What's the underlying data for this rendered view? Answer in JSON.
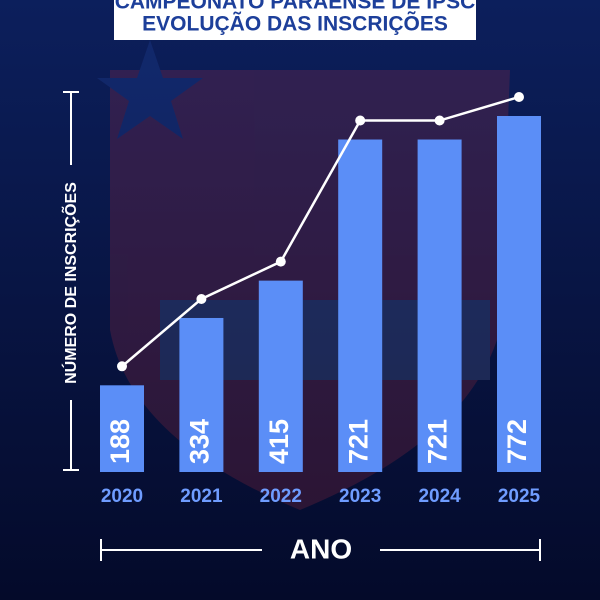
{
  "chart_data": {
    "type": "bar",
    "title": "CAMPEONATO PARAENSE DE IPSC",
    "subtitle": "EVOLUÇÃO DAS INSCRIÇÕES",
    "x_label": "ANO",
    "y_label": "NÚMERO DE INSCRIÇÕES",
    "categories": [
      "2020",
      "2021",
      "2022",
      "2023",
      "2024",
      "2025"
    ],
    "values": [
      188,
      334,
      415,
      721,
      721,
      772
    ],
    "color": "#5b8ef7"
  }
}
